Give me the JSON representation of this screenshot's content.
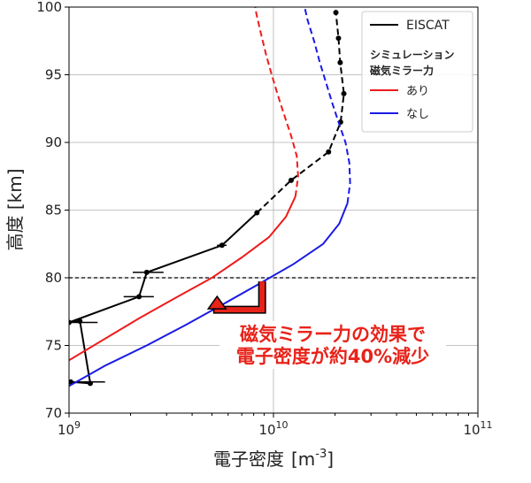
{
  "chart_data": {
    "type": "line",
    "xlabel_main": "電子密度",
    "xlabel_unit_base": "[m",
    "xlabel_unit_exp": "-3",
    "xlabel_unit_close": "]",
    "ylabel": "高度 [km]",
    "x_scale": "log",
    "xlim": [
      1000000000.0,
      100000000000.0
    ],
    "ylim": [
      70,
      100
    ],
    "x_ticks": [
      {
        "value": 1000000000.0,
        "base": "10",
        "exp": "9"
      },
      {
        "value": 10000000000.0,
        "base": "10",
        "exp": "10"
      },
      {
        "value": 100000000000.0,
        "base": "10",
        "exp": "11"
      }
    ],
    "y_ticks": [
      70,
      75,
      80,
      85,
      90,
      95,
      100
    ],
    "grid": true,
    "reference_line_y": 80,
    "legend": {
      "placement": "top-right",
      "eiscat_label": "EISCAT",
      "sim_title": "シミュレーション",
      "sim_subtitle": "磁気ミラー力",
      "with_label": "あり",
      "without_label": "なし"
    },
    "series": [
      {
        "name": "EISCAT",
        "color": "#000000",
        "points": [
          [
            1020000000.0,
            72.3
          ],
          [
            1270000000.0,
            72.2
          ],
          [
            1130000000.0,
            76.8
          ],
          [
            1000000000.0,
            76.7
          ],
          [
            2200000000.0,
            78.6
          ],
          [
            2400000000.0,
            80.4
          ],
          [
            5600000000.0,
            82.4
          ],
          [
            8300000000.0,
            84.8
          ],
          [
            12200000000.0,
            87.2
          ],
          [
            18600000000.0,
            89.3
          ],
          [
            21300000000.0,
            91.5
          ],
          [
            22100000000.0,
            93.6
          ],
          [
            21200000000.0,
            95.9
          ],
          [
            20800000000.0,
            97.7
          ],
          [
            20200000000.0,
            99.6
          ]
        ],
        "solid_until_index": 7,
        "error_bars": [
          {
            "y": 72.3,
            "lo": 1020000000.0,
            "hi": 1500000000.0
          },
          {
            "y": 76.7,
            "lo": 1000000000.0,
            "hi": 1380000000.0
          },
          {
            "y": 78.6,
            "lo": 1850000000.0,
            "hi": 2600000000.0
          },
          {
            "y": 80.4,
            "lo": 2050000000.0,
            "hi": 2900000000.0
          },
          {
            "y": 82.4,
            "lo": 5300000000.0,
            "hi": 5900000000.0
          }
        ]
      },
      {
        "name": "あり",
        "color": "#ee1c1c",
        "points": [
          [
            1000000000.0,
            73.9
          ],
          [
            1500000000.0,
            75.5
          ],
          [
            2200000000.0,
            77.0
          ],
          [
            3300000000.0,
            78.5
          ],
          [
            5000000000.0,
            80.0
          ],
          [
            7000000000.0,
            81.5
          ],
          [
            9500000000.0,
            83.0
          ],
          [
            11500000000.0,
            84.5
          ],
          [
            12800000000.0,
            86.0
          ],
          [
            13200000000.0,
            87.5
          ],
          [
            13000000000.0,
            89.0
          ],
          [
            12200000000.0,
            90.5
          ],
          [
            11300000000.0,
            92.0
          ],
          [
            10500000000.0,
            93.5
          ],
          [
            9800000000.0,
            95.0
          ],
          [
            9200000000.0,
            96.5
          ],
          [
            8700000000.0,
            98.0
          ],
          [
            8250000000.0,
            99.5
          ],
          [
            8150000000.0,
            100.0
          ]
        ],
        "solid_until_index": 8
      },
      {
        "name": "なし",
        "color": "#1a1ae6",
        "points": [
          [
            1000000000.0,
            72.0
          ],
          [
            1500000000.0,
            73.5
          ],
          [
            2400000000.0,
            75.0
          ],
          [
            3700000000.0,
            76.5
          ],
          [
            5600000000.0,
            78.0
          ],
          [
            8400000000.0,
            79.5
          ],
          [
            12500000000.0,
            81.0
          ],
          [
            17500000000.0,
            82.5
          ],
          [
            21000000000.0,
            84.0
          ],
          [
            23000000000.0,
            85.5
          ],
          [
            23700000000.0,
            87.0
          ],
          [
            23500000000.0,
            88.5
          ],
          [
            22500000000.0,
            90.0
          ],
          [
            20800000000.0,
            91.5
          ],
          [
            19300000000.0,
            93.0
          ],
          [
            18000000000.0,
            94.5
          ],
          [
            16800000000.0,
            96.0
          ],
          [
            15800000000.0,
            97.5
          ],
          [
            14700000000.0,
            99.0
          ],
          [
            14200000000.0,
            100.0
          ]
        ],
        "solid_until_index": 9
      }
    ],
    "annotation": {
      "line1": "磁気ミラー力の効果で",
      "line2": "電子密度が約40%減少",
      "color": "#e8231a",
      "arrow_from": [
        8800000000.0,
        79.4
      ],
      "arrow_to": [
        5300000000.0,
        78.1
      ]
    }
  }
}
